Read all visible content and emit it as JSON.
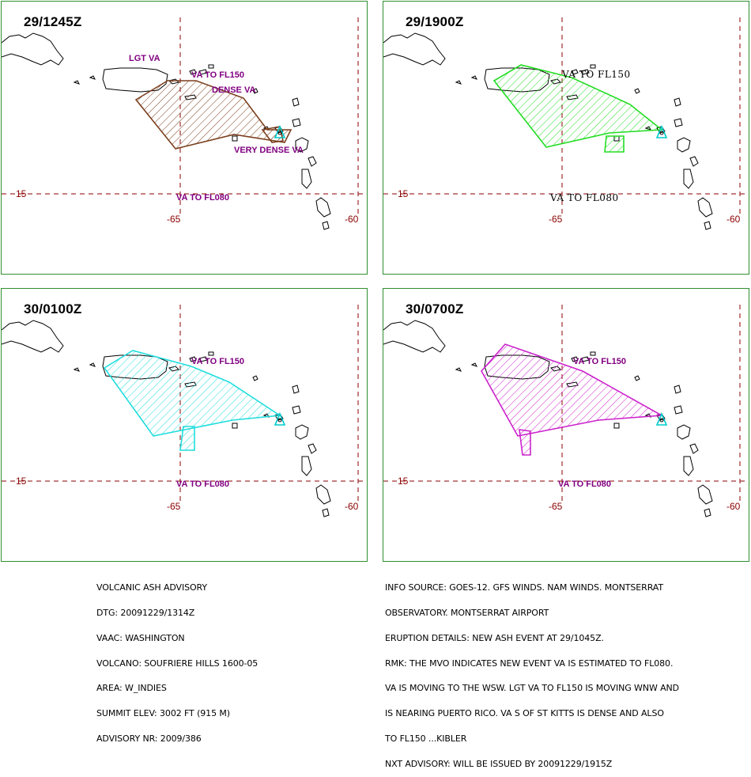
{
  "panels": [
    {
      "time": "29/1245Z",
      "color": "#7b3f1e",
      "labels": [
        {
          "text": "LGT VA"
        },
        {
          "text": "VA TO FL150"
        },
        {
          "text": "DENSE VA"
        },
        {
          "text": "VERY DENSE VA"
        },
        {
          "text": "VA TO FL080"
        }
      ]
    },
    {
      "time": "29/1900Z",
      "color": "#22dd22",
      "labels": [
        {
          "text": "VA TO FL150"
        },
        {
          "text": "VA TO FL080"
        }
      ]
    },
    {
      "time": "30/0100Z",
      "color": "#22dddd",
      "labels": [
        {
          "text": "VA TO FL150"
        },
        {
          "text": "VA TO FL080"
        }
      ]
    },
    {
      "time": "30/0700Z",
      "color": "#cc22cc",
      "labels": [
        {
          "text": "VA TO FL150"
        },
        {
          "text": "VA TO FL080"
        }
      ]
    }
  ],
  "grid": {
    "lat": "15",
    "lon_west": "-65",
    "lon_east": "-60",
    "grid_color": "#8b0000",
    "volcano_marker_color": "#00cccc"
  },
  "advisory": {
    "left_lines": [
      "VOLCANIC ASH ADVISORY",
      "DTG: 20091229/1314Z",
      "VAAC: WASHINGTON",
      "VOLCANO: SOUFRIERE HILLS 1600-05",
      "AREA: W_INDIES",
      "SUMMIT ELEV: 3002 FT (915 M)",
      "ADVISORY NR: 2009/386"
    ],
    "right_lines": [
      "INFO SOURCE: GOES-12. GFS WINDS. NAM WINDS. MONTSERRAT",
      "OBSERVATORY. MONTSERRAT AIRPORT",
      "ERUPTION DETAILS: NEW ASH EVENT AT 29/1045Z.",
      "RMK: THE MVO INDICATES NEW EVENT VA IS ESTIMATED TO FL080.",
      "VA IS MOVING TO THE WSW. LGT VA TO FL150 IS MOVING WNW AND",
      "IS NEARING PUERTO RICO. VA S OF ST KITTS IS DENSE AND ALSO",
      "TO FL150 ...KIBLER",
      "NXT ADVISORY: WILL BE ISSUED BY 20091229/1915Z"
    ]
  }
}
